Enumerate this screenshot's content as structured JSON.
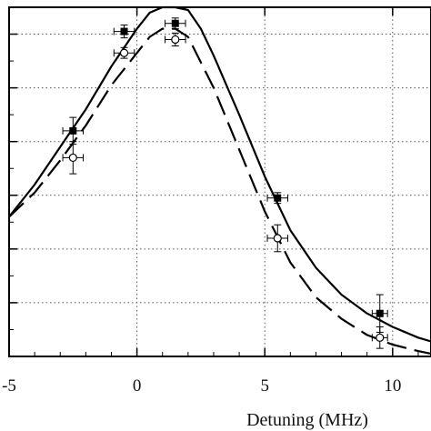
{
  "chart_data": {
    "type": "scatter",
    "xlabel": "Detuning (MHz)",
    "ylabel": "",
    "x_ticks": [
      -5,
      0,
      5,
      10
    ],
    "x_tick_labels": [
      "-5",
      "0",
      "5",
      "10"
    ],
    "xlim": [
      -5,
      11.5
    ],
    "ylim": [
      0,
      6.5
    ],
    "y_grid": [
      1,
      2,
      3,
      4,
      5,
      6
    ],
    "grid": true,
    "grid_style": "dotted",
    "series": [
      {
        "marker": "filled-square",
        "points": [
          {
            "x": -2.5,
            "y": 4.2,
            "xerr": 0.4,
            "yerr": 0.25
          },
          {
            "x": -0.5,
            "y": 6.05,
            "xerr": 0.4,
            "yerr": 0.12
          },
          {
            "x": 1.5,
            "y": 6.2,
            "xerr": 0.4,
            "yerr": 0.1
          },
          {
            "x": 5.5,
            "y": 2.95,
            "xerr": 0.4,
            "yerr": 0.1
          },
          {
            "x": 9.5,
            "y": 0.8,
            "xerr": 0.3,
            "yerr": 0.35
          }
        ]
      },
      {
        "marker": "open-circle",
        "points": [
          {
            "x": -2.5,
            "y": 3.7,
            "xerr": 0.4,
            "yerr": 0.3
          },
          {
            "x": -0.5,
            "y": 5.65,
            "xerr": 0.4,
            "yerr": 0.1
          },
          {
            "x": 1.5,
            "y": 5.9,
            "xerr": 0.4,
            "yerr": 0.12
          },
          {
            "x": 5.5,
            "y": 2.2,
            "xerr": 0.4,
            "yerr": 0.25
          },
          {
            "x": 9.5,
            "y": 0.35,
            "xerr": 0.3,
            "yerr": 0.2
          }
        ]
      }
    ],
    "curves": [
      {
        "style": "solid",
        "points": [
          [
            -5,
            2.6
          ],
          [
            -4,
            3.2
          ],
          [
            -3,
            3.9
          ],
          [
            -2,
            4.6
          ],
          [
            -1,
            5.4
          ],
          [
            0,
            6.1
          ],
          [
            0.5,
            6.4
          ],
          [
            1,
            6.5
          ],
          [
            1.5,
            6.5
          ],
          [
            2,
            6.45
          ],
          [
            2.5,
            6.1
          ],
          [
            3,
            5.6
          ],
          [
            4,
            4.5
          ],
          [
            5,
            3.35
          ],
          [
            6,
            2.35
          ],
          [
            7,
            1.65
          ],
          [
            8,
            1.15
          ],
          [
            9,
            0.8
          ],
          [
            10,
            0.55
          ],
          [
            11,
            0.35
          ],
          [
            11.5,
            0.28
          ]
        ]
      },
      {
        "style": "dashed",
        "points": [
          [
            -5,
            2.6
          ],
          [
            -4,
            3.05
          ],
          [
            -3,
            3.65
          ],
          [
            -2,
            4.3
          ],
          [
            -1,
            5.05
          ],
          [
            0,
            5.65
          ],
          [
            0.5,
            5.95
          ],
          [
            1,
            6.1
          ],
          [
            1.5,
            6.1
          ],
          [
            2,
            5.95
          ],
          [
            3,
            5.0
          ],
          [
            4,
            3.85
          ],
          [
            5,
            2.7
          ],
          [
            6,
            1.75
          ],
          [
            7,
            1.1
          ],
          [
            8,
            0.7
          ],
          [
            9,
            0.4
          ],
          [
            10,
            0.22
          ],
          [
            11,
            0.1
          ],
          [
            11.5,
            0.05
          ]
        ]
      }
    ]
  }
}
